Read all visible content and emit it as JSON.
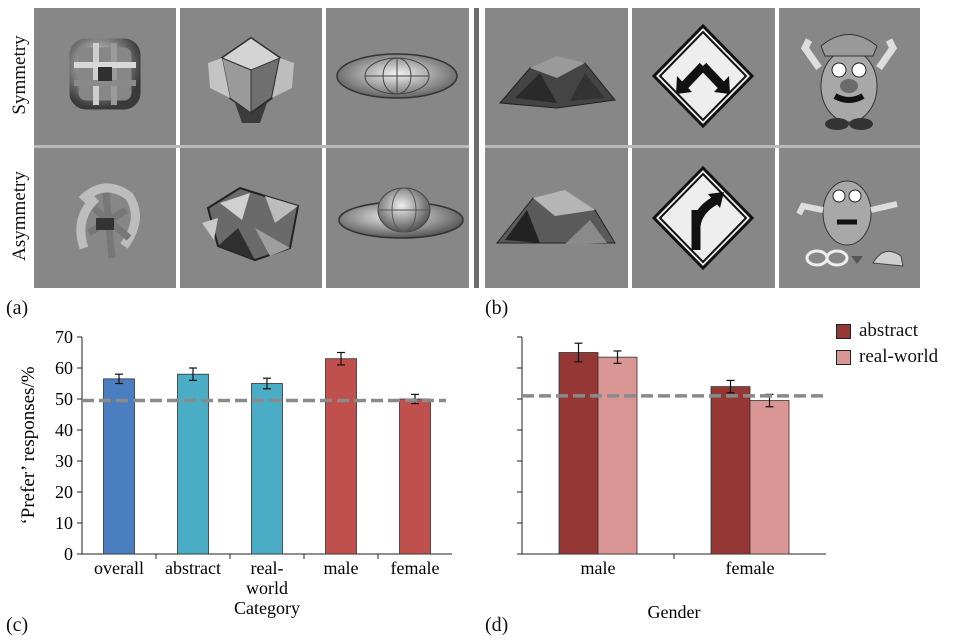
{
  "panel_labels": {
    "a": "(a)",
    "b": "(b)",
    "c": "(c)",
    "d": "(d)"
  },
  "row_labels": {
    "symmetry": "Symmetry",
    "asymmetry": "Asymmetry"
  },
  "chart_data": [
    {
      "type": "bar",
      "panel": "(c)",
      "categories": [
        "overall",
        "abstract",
        "real-world",
        "male",
        "female"
      ],
      "category_lines": [
        [
          "overall"
        ],
        [
          "abstract"
        ],
        [
          "real-",
          "world"
        ],
        [
          "male"
        ],
        [
          "female"
        ]
      ],
      "values": [
        56.5,
        58,
        55,
        63,
        50
      ],
      "errors": [
        1.5,
        2,
        1.7,
        2,
        1.5
      ],
      "colors": [
        "#4a7ec0",
        "#4aacc5",
        "#4aacc5",
        "#c0504d",
        "#c0504d"
      ],
      "reference_line": 49.5,
      "ylabel": "‘Prefer’ responses/%",
      "xlabel": "Category",
      "ylim": [
        0,
        70
      ],
      "yticks": [
        0,
        10,
        20,
        30,
        40,
        50,
        60,
        70
      ],
      "grid": false
    },
    {
      "type": "bar",
      "panel": "(d)",
      "categories": [
        "male",
        "female"
      ],
      "series": [
        {
          "name": "abstract",
          "values": [
            65,
            54
          ],
          "errors": [
            3,
            2
          ],
          "color": "#953735"
        },
        {
          "name": "real-world",
          "values": [
            63.5,
            49.5
          ],
          "errors": [
            2,
            2
          ],
          "color": "#d99694"
        }
      ],
      "reference_line": 51,
      "xlabel": "Gender",
      "ylim": [
        0,
        70
      ],
      "legend": "top-right",
      "grid": false
    }
  ]
}
